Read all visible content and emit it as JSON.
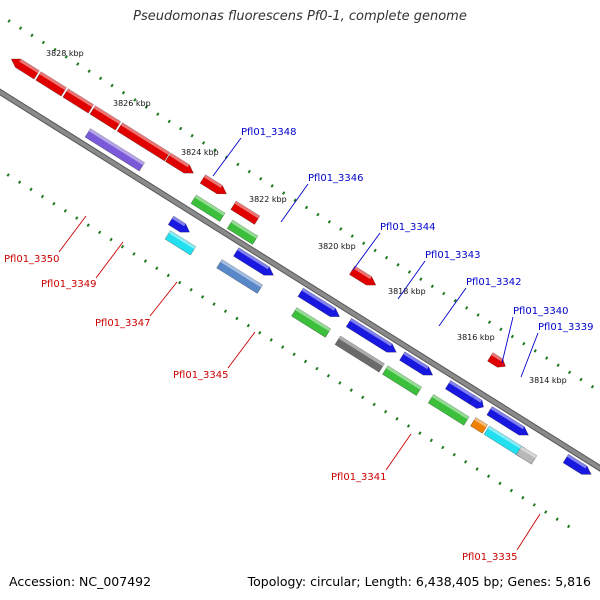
{
  "title": "Pseudomonas fluorescens Pf0-1, complete genome",
  "footer": {
    "accession": "Accession: NC_007492",
    "stats": "Topology: circular; Length: 6,438,405 bp; Genes: 5,816"
  },
  "colors": {
    "backbone": "#8a8a8a",
    "dots": "#1e7a1e",
    "red": "#e00000",
    "blue": "#1818e0",
    "green": "#3cc03c",
    "purple": "#7a5ad8",
    "cyan": "#22e0f0",
    "steelblue": "#5888c8",
    "gray": "#6a6a6a",
    "lightgray": "#b8b8b8",
    "orange": "#f08000",
    "top_label": "#0000cc",
    "bottom_label": "#cc0000"
  },
  "kbp_labels": [
    "3828 kbp",
    "3826 kbp",
    "3824 kbp",
    "3822 kbp",
    "3820 kbp",
    "3818 kbp",
    "3816 kbp",
    "3814 kbp"
  ],
  "gene_labels_top": [
    "Pfl01_3348",
    "Pfl01_3346",
    "Pfl01_3344",
    "Pfl01_3343",
    "Pfl01_3342",
    "Pfl01_3340",
    "Pfl01_3339"
  ],
  "gene_labels_bottom": [
    "Pfl01_3350",
    "Pfl01_3349",
    "Pfl01_3347",
    "Pfl01_3345",
    "Pfl01_3341",
    "Pfl01_3335"
  ]
}
